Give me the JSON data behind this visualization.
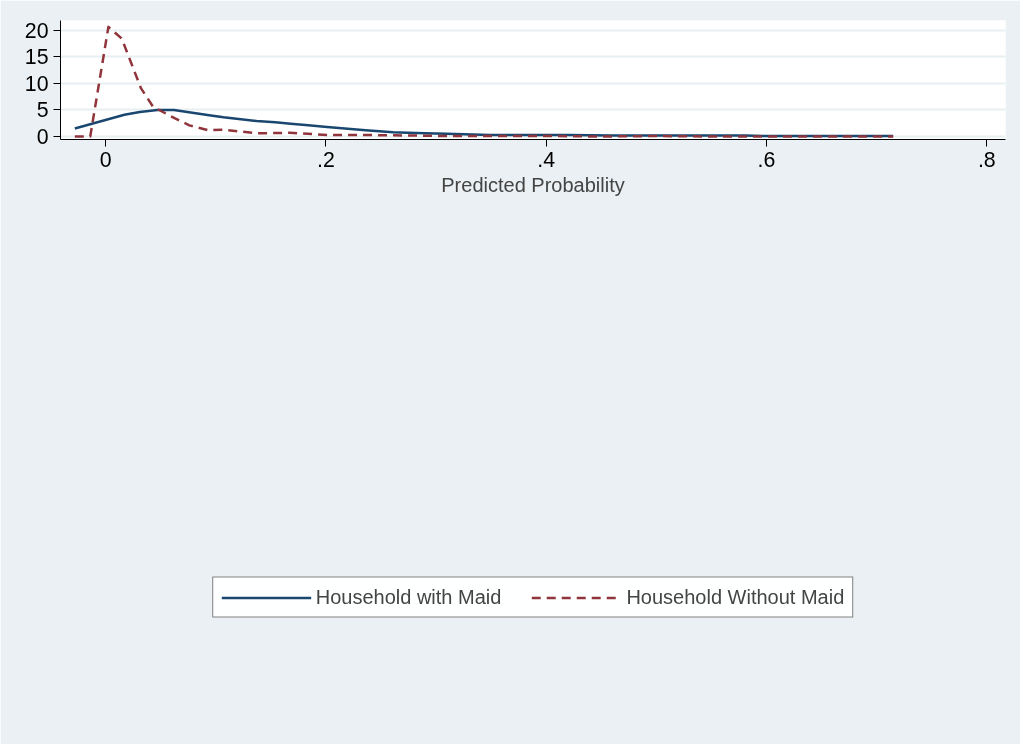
{
  "chart_data": {
    "type": "line",
    "xlabel": "Predicted Probability",
    "xlim": [
      -0.041,
      0.817
    ],
    "ylim": [
      -0.56,
      21.8
    ],
    "xticks": [
      {
        "value": 0,
        "label": "0"
      },
      {
        "value": 0.2,
        "label": ".2"
      },
      {
        "value": 0.4,
        "label": ".4"
      },
      {
        "value": 0.6,
        "label": ".6"
      },
      {
        "value": 0.8,
        "label": ".8"
      }
    ],
    "yticks": [
      0,
      5,
      10,
      15,
      20
    ],
    "grid": "y",
    "legend": "bottom",
    "series": [
      {
        "name": "Household with Maid",
        "color": "#1a476f",
        "line_style": "solid",
        "x": [
          -0.028,
          0.017,
          0.031,
          0.047,
          0.062,
          0.094,
          0.107,
          0.137,
          0.154,
          0.168,
          0.184,
          0.201,
          0.236,
          0.261,
          0.274,
          0.29,
          0.309,
          0.349,
          0.387,
          0.42,
          0.46,
          0.5,
          0.55,
          0.58,
          0.6,
          0.62,
          0.66,
          0.7,
          0.715
        ],
        "values": [
          1.5,
          4.1,
          4.6,
          5.0,
          5.0,
          4.0,
          3.6,
          2.9,
          2.7,
          2.4,
          2.1,
          1.8,
          1.2,
          0.8,
          0.7,
          0.6,
          0.5,
          0.3,
          0.3,
          0.3,
          0.2,
          0.2,
          0.2,
          0.2,
          0.1,
          0.1,
          0.1,
          0.1,
          0.1
        ]
      },
      {
        "name": "Household Without Maid",
        "color": "#90353b",
        "line_style": "dashed",
        "x": [
          -0.028,
          -0.014,
          0.0025,
          0.0146,
          0.032,
          0.043,
          0.063,
          0.076,
          0.093,
          0.107,
          0.137,
          0.167,
          0.201,
          0.228,
          0.274,
          0.309,
          0.387,
          0.4,
          0.45,
          0.5,
          0.55,
          0.6,
          0.715
        ],
        "values": [
          0,
          0,
          20.6,
          18.4,
          9.1,
          5.6,
          3.4,
          2.1,
          1.2,
          1.3,
          0.6,
          0.7,
          0.3,
          0.3,
          0.2,
          0.1,
          0.1,
          0.1,
          0.0,
          0.1,
          0.0,
          0.0,
          0.0
        ]
      }
    ]
  }
}
